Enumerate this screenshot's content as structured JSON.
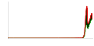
{
  "chart_data": {
    "type": "line",
    "x": [
      4.5,
      4.2,
      4.0,
      3.5,
      3.0,
      2.5,
      2.0,
      1.8,
      1.5,
      1.2,
      1.0,
      0.8,
      0.7,
      0.6,
      0.55,
      0.5,
      0.48,
      0.46,
      0.44,
      0.42,
      0.4,
      0.38,
      0.36,
      0.34,
      0.32,
      0.3,
      0.29,
      0.28,
      0.27,
      0.26,
      0.25,
      0.24,
      0.23,
      0.22,
      0.2,
      0.18,
      0.15,
      0.12,
      0.1,
      0.08,
      0.066,
      0.05,
      0.03,
      0.01,
      0.0
    ],
    "series": [
      {
        "color": "#dd0000",
        "values": [
          0.0,
          0.0,
          0.0,
          0.0,
          0.0002,
          0.0003,
          0.0005,
          0.0006,
          0.0008,
          0.001,
          0.001,
          0.002,
          0.003,
          0.004,
          0.006,
          0.01,
          0.015,
          0.025,
          0.04,
          0.07,
          0.12,
          0.18,
          0.25,
          0.3,
          0.33,
          0.35,
          0.33,
          0.28,
          0.24,
          0.2,
          0.17,
          0.16,
          0.155,
          0.16,
          0.17,
          0.18,
          0.2,
          0.22,
          0.24,
          0.255,
          0.265,
          0.27,
          0.27,
          0.21,
          0.21
        ]
      },
      {
        "color": "#00bb00",
        "values": [
          0.0,
          0.0,
          0.0,
          0.0,
          0.0,
          0.0,
          0.0,
          0.0,
          0.0005,
          0.001,
          0.001,
          0.001,
          0.002,
          0.002,
          0.003,
          0.005,
          0.007,
          0.012,
          0.02,
          0.04,
          0.07,
          0.1,
          0.13,
          0.145,
          0.15,
          0.145,
          0.14,
          0.13,
          0.12,
          0.11,
          0.105,
          0.105,
          0.11,
          0.115,
          0.125,
          0.14,
          0.155,
          0.17,
          0.185,
          0.195,
          0.2,
          0.205,
          0.205,
          0.21,
          0.21
        ]
      }
    ],
    "color": "#003300",
    "xlim": [
      4.5,
      0.0
    ],
    "ylim": [
      0.0,
      0.4
    ],
    "tick_labels": false,
    "grid": false
  }
}
